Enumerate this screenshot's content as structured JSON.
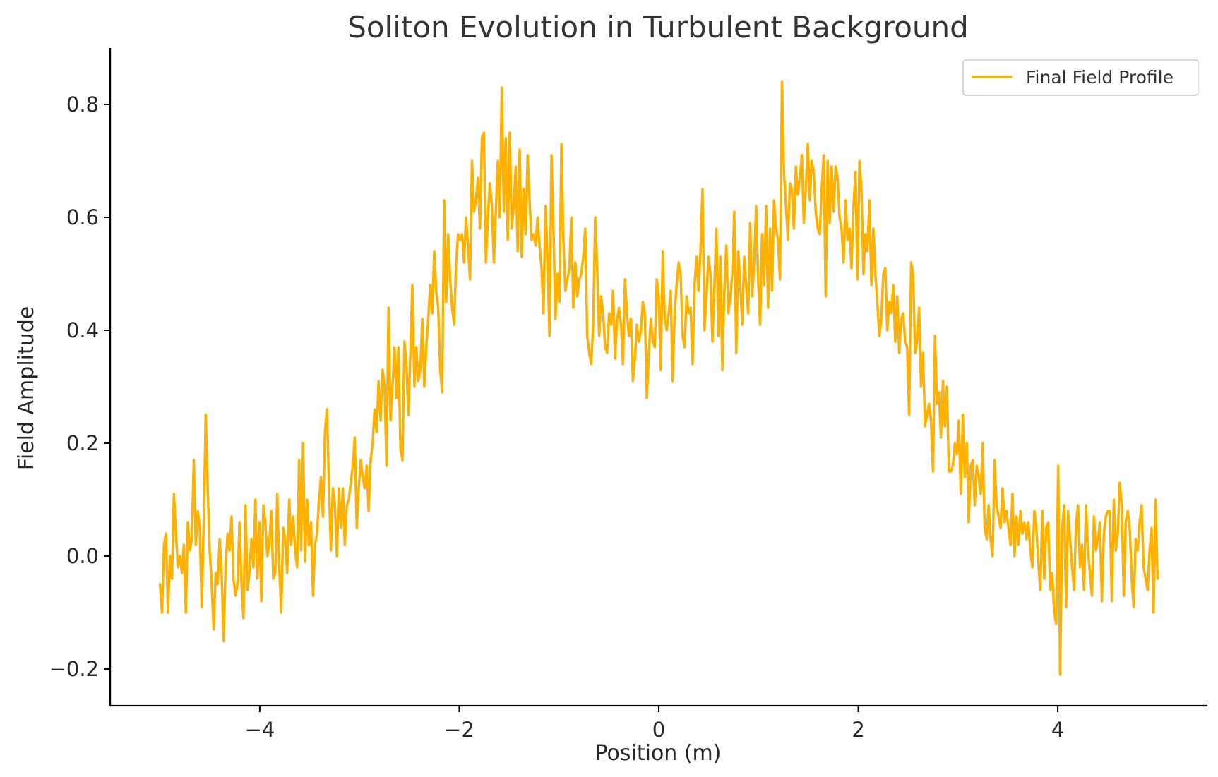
{
  "chart_data": {
    "type": "line",
    "title": "Soliton Evolution in Turbulent Background",
    "xlabel": "Position (m)",
    "ylabel": "Field Amplitude",
    "xlim": [
      -5.5,
      5.5
    ],
    "ylim": [
      -0.265,
      0.9
    ],
    "xticks": [
      -4,
      -2,
      0,
      2,
      4
    ],
    "xtick_labels": [
      "−4",
      "−2",
      "0",
      "2",
      "4"
    ],
    "yticks": [
      -0.2,
      0.0,
      0.2,
      0.4,
      0.6,
      0.8
    ],
    "ytick_labels": [
      "−0.2",
      "0.0",
      "0.2",
      "0.4",
      "0.6",
      "0.8"
    ],
    "grid": false,
    "legend_position": "top-right",
    "colors": {
      "series": "#FFB000",
      "axis": "#000000",
      "text": "#262626"
    },
    "series": [
      {
        "name": "Final Field Profile",
        "x_start": -5.0,
        "x_end": 5.0,
        "values": [
          -0.05,
          -0.1,
          0.02,
          0.04,
          -0.1,
          0.0,
          -0.04,
          0.11,
          0.04,
          -0.02,
          0.0,
          -0.03,
          0.02,
          -0.1,
          0.06,
          0.01,
          0.03,
          0.17,
          0.02,
          0.08,
          0.05,
          -0.09,
          0.06,
          0.25,
          0.12,
          0.01,
          -0.05,
          -0.13,
          -0.03,
          -0.05,
          0.03,
          -0.03,
          -0.15,
          -0.02,
          0.04,
          0.01,
          0.07,
          -0.04,
          -0.07,
          -0.05,
          0.06,
          -0.05,
          -0.11,
          0.09,
          -0.06,
          -0.03,
          0.03,
          -0.02,
          0.1,
          -0.04,
          0.06,
          -0.08,
          0.09,
          0.06,
          0.0,
          0.02,
          0.08,
          -0.04,
          -0.03,
          0.11,
          -0.02,
          -0.1,
          0.05,
          0.03,
          -0.03,
          0.1,
          0.02,
          0.07,
          0.01,
          -0.02,
          0.17,
          0.01,
          0.2,
          -0.01,
          0.1,
          0.02,
          0.06,
          -0.07,
          0.02,
          0.04,
          0.1,
          0.14,
          0.07,
          0.22,
          0.26,
          0.13,
          0.01,
          0.12,
          0.09,
          0.0,
          0.12,
          0.05,
          0.12,
          0.02,
          0.09,
          0.1,
          0.13,
          0.16,
          0.21,
          0.05,
          0.12,
          0.17,
          0.14,
          0.12,
          0.16,
          0.08,
          0.17,
          0.2,
          0.26,
          0.22,
          0.31,
          0.24,
          0.33,
          0.3,
          0.16,
          0.44,
          0.24,
          0.3,
          0.37,
          0.28,
          0.37,
          0.19,
          0.17,
          0.38,
          0.34,
          0.25,
          0.36,
          0.48,
          0.3,
          0.37,
          0.31,
          0.33,
          0.42,
          0.3,
          0.37,
          0.42,
          0.48,
          0.43,
          0.54,
          0.47,
          0.44,
          0.33,
          0.29,
          0.63,
          0.45,
          0.57,
          0.49,
          0.44,
          0.41,
          0.52,
          0.57,
          0.56,
          0.57,
          0.52,
          0.6,
          0.55,
          0.49,
          0.7,
          0.61,
          0.63,
          0.67,
          0.58,
          0.74,
          0.75,
          0.52,
          0.6,
          0.66,
          0.62,
          0.52,
          0.61,
          0.7,
          0.6,
          0.83,
          0.61,
          0.74,
          0.56,
          0.75,
          0.58,
          0.62,
          0.69,
          0.54,
          0.72,
          0.53,
          0.65,
          0.57,
          0.71,
          0.63,
          0.56,
          0.57,
          0.55,
          0.6,
          0.55,
          0.51,
          0.43,
          0.62,
          0.53,
          0.39,
          0.71,
          0.58,
          0.42,
          0.5,
          0.45,
          0.73,
          0.56,
          0.47,
          0.49,
          0.51,
          0.6,
          0.44,
          0.52,
          0.46,
          0.49,
          0.5,
          0.53,
          0.58,
          0.39,
          0.36,
          0.34,
          0.41,
          0.6,
          0.51,
          0.39,
          0.46,
          0.43,
          0.37,
          0.36,
          0.43,
          0.41,
          0.47,
          0.35,
          0.42,
          0.44,
          0.41,
          0.34,
          0.49,
          0.43,
          0.39,
          0.42,
          0.31,
          0.35,
          0.41,
          0.38,
          0.4,
          0.45,
          0.43,
          0.28,
          0.36,
          0.42,
          0.38,
          0.37,
          0.49,
          0.46,
          0.33,
          0.54,
          0.42,
          0.4,
          0.43,
          0.47,
          0.31,
          0.43,
          0.48,
          0.52,
          0.5,
          0.39,
          0.37,
          0.46,
          0.43,
          0.44,
          0.34,
          0.48,
          0.53,
          0.47,
          0.54,
          0.65,
          0.4,
          0.46,
          0.53,
          0.5,
          0.38,
          0.48,
          0.58,
          0.39,
          0.53,
          0.33,
          0.47,
          0.55,
          0.43,
          0.46,
          0.5,
          0.61,
          0.36,
          0.54,
          0.48,
          0.41,
          0.53,
          0.48,
          0.43,
          0.59,
          0.46,
          0.52,
          0.62,
          0.49,
          0.41,
          0.57,
          0.48,
          0.62,
          0.44,
          0.58,
          0.47,
          0.63,
          0.58,
          0.56,
          0.49,
          0.84,
          0.68,
          0.62,
          0.56,
          0.66,
          0.65,
          0.58,
          0.69,
          0.64,
          0.67,
          0.71,
          0.59,
          0.65,
          0.73,
          0.63,
          0.7,
          0.68,
          0.61,
          0.58,
          0.57,
          0.65,
          0.71,
          0.46,
          0.7,
          0.59,
          0.69,
          0.61,
          0.69,
          0.67,
          0.6,
          0.58,
          0.52,
          0.63,
          0.56,
          0.58,
          0.51,
          0.62,
          0.68,
          0.49,
          0.7,
          0.65,
          0.5,
          0.57,
          0.54,
          0.63,
          0.48,
          0.58,
          0.5,
          0.45,
          0.39,
          0.42,
          0.5,
          0.51,
          0.4,
          0.45,
          0.43,
          0.48,
          0.38,
          0.46,
          0.36,
          0.42,
          0.43,
          0.38,
          0.37,
          0.25,
          0.52,
          0.5,
          0.36,
          0.38,
          0.44,
          0.3,
          0.36,
          0.23,
          0.25,
          0.27,
          0.24,
          0.15,
          0.39,
          0.27,
          0.29,
          0.21,
          0.31,
          0.23,
          0.3,
          0.15,
          0.15,
          0.16,
          0.2,
          0.18,
          0.24,
          0.11,
          0.25,
          0.14,
          0.2,
          0.06,
          0.16,
          0.17,
          0.09,
          0.16,
          0.14,
          0.11,
          0.2,
          0.05,
          0.03,
          0.09,
          0.03,
          0.0,
          0.17,
          0.09,
          0.07,
          0.05,
          0.12,
          0.06,
          0.08,
          0.05,
          0.02,
          0.11,
          0.0,
          0.07,
          0.02,
          0.08,
          0.04,
          0.06,
          0.03,
          0.06,
          0.01,
          -0.02,
          0.08,
          0.05,
          -0.01,
          -0.06,
          0.08,
          -0.04,
          0.05,
          0.06,
          -0.06,
          -0.03,
          -0.1,
          -0.12,
          0.16,
          -0.21,
          0.05,
          0.09,
          -0.09,
          0.08,
          0.03,
          -0.02,
          -0.06,
          0.06,
          0.09,
          -0.02,
          0.02,
          -0.06,
          0.09,
          0.01,
          -0.03,
          -0.07,
          0.07,
          0.01,
          0.03,
          0.06,
          -0.08,
          0.04,
          0.07,
          0.08,
          0.08,
          -0.08,
          0.1,
          0.01,
          0.04,
          0.13,
          0.09,
          -0.07,
          0.06,
          0.08,
          0.05,
          -0.04,
          -0.09,
          0.03,
          0.01,
          0.06,
          0.09,
          -0.02,
          -0.04,
          -0.06,
          0.01,
          0.05,
          -0.1,
          0.1,
          -0.04
        ]
      }
    ]
  }
}
